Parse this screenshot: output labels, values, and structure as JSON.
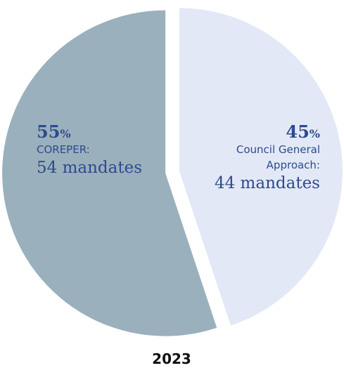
{
  "chart_data": {
    "type": "pie",
    "title": "2023",
    "slices": [
      {
        "name": "COREPER",
        "label_lines": [
          "COREPER:"
        ],
        "value": 54,
        "percent_value": "55",
        "percent_sign": "%",
        "mandates_label": "54 mandates",
        "color": "#9bb0bd"
      },
      {
        "name": "Council General Approach",
        "label_lines": [
          "Council General",
          "Approach:"
        ],
        "value": 44,
        "percent_value": "45",
        "percent_sign": "%",
        "mandates_label": "44 mandates",
        "color": "#e3e8f7"
      }
    ],
    "label_color": "#2c4b8c",
    "year_color": "#111111",
    "exploded": true
  }
}
